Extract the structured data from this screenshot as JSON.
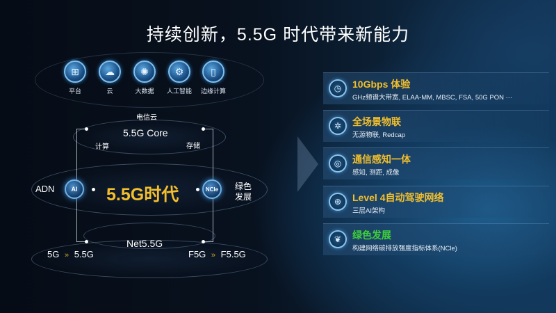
{
  "title": "持续创新，5.5G 时代带来新能力",
  "top_icons": [
    {
      "label": "平台",
      "icon": "platform-icon"
    },
    {
      "label": "云",
      "icon": "cloud-icon"
    },
    {
      "label": "大数据",
      "icon": "big-data-icon"
    },
    {
      "label": "人工智能",
      "icon": "ai-chip-icon"
    },
    {
      "label": "边缘计算",
      "icon": "edge-computing-icon"
    }
  ],
  "diagram": {
    "cloud_label": "电信云",
    "core": "5.5G Core",
    "compute": "计算",
    "storage": "存储",
    "center": "5.5G时代",
    "left_label": "ADN",
    "left_badge": "AI",
    "right_badge": "NCle",
    "right_label_1": "绿色",
    "right_label_2": "发展",
    "net": "Net5.5G",
    "left_from": "5G",
    "left_to": "5.5G",
    "right_from": "F5G",
    "right_to": "F5.5G"
  },
  "capabilities": [
    {
      "title": "10Gbps 体验",
      "desc": "GHz频谱大带宽, ELAA-MM, MBSC, FSA, 50G PON ···",
      "icon": "speed-gauge-icon",
      "color": "#f3bf2c"
    },
    {
      "title": "全场景物联",
      "desc": "无源物联, Redcap",
      "icon": "iot-network-icon",
      "color": "#f3bf2c"
    },
    {
      "title": "通信感知一体",
      "desc": "感知, 测距, 成像",
      "icon": "sensing-icon",
      "color": "#f3bf2c"
    },
    {
      "title": "Level 4自动驾驶网络",
      "desc": "三层AI架构",
      "icon": "globe-network-icon",
      "color": "#f3bf2c"
    },
    {
      "title": "绿色发展",
      "desc": "构建网络碳排放强度指标体系(NCle)",
      "icon": "leaf-icon",
      "color": "#3fd13a"
    }
  ],
  "colors": {
    "accent_yellow": "#f3bf2c",
    "accent_green": "#3fd13a",
    "arrow_yellow": "#c9a227"
  }
}
